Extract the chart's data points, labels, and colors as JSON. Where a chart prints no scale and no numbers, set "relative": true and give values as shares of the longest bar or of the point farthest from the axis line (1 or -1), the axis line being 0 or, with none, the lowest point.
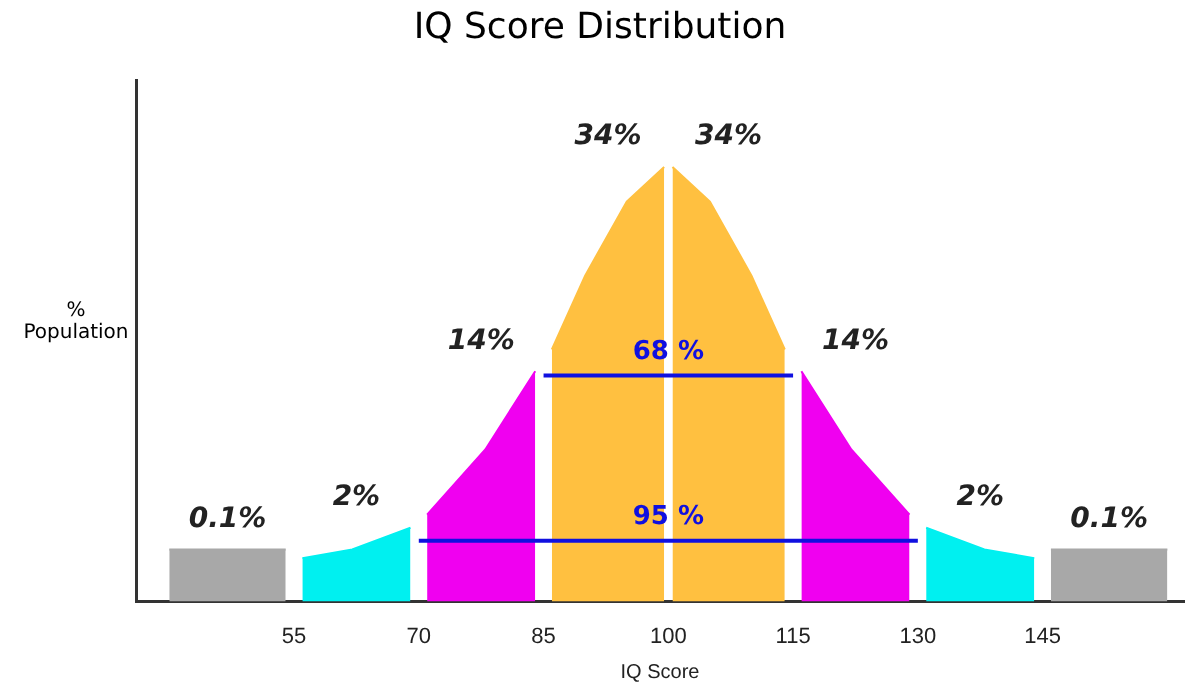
{
  "chart_data": {
    "type": "area",
    "title": "IQ Score Distribution",
    "xlabel": "IQ Score",
    "ylabel": "% Population",
    "relative": true,
    "xlim": [
      36,
      162
    ],
    "xticks": [
      55,
      70,
      85,
      100,
      115,
      130,
      145
    ],
    "series": [
      {
        "name": "0.1%",
        "color": "#a8a8a8",
        "x": [
          40,
          54
        ],
        "values": [
          0.12,
          0.12
        ]
      },
      {
        "name": "2%",
        "color": "#00f0f0",
        "x": [
          56,
          62,
          69
        ],
        "values": [
          0.1,
          0.12,
          0.17
        ]
      },
      {
        "name": "14%",
        "color": "#f000f0",
        "x": [
          71,
          78,
          84
        ],
        "values": [
          0.2,
          0.35,
          0.53
        ]
      },
      {
        "name": "34%",
        "color": "#ffc040",
        "x": [
          86,
          90,
          95,
          99.5
        ],
        "values": [
          0.58,
          0.75,
          0.92,
          1
        ]
      },
      {
        "name": "34%",
        "color": "#ffc040",
        "x": [
          100.5,
          105,
          110,
          114
        ],
        "values": [
          1,
          0.92,
          0.75,
          0.58
        ]
      },
      {
        "name": "14%",
        "color": "#f000f0",
        "x": [
          116,
          122,
          129
        ],
        "values": [
          0.53,
          0.35,
          0.2
        ]
      },
      {
        "name": "2%",
        "color": "#00f0f0",
        "x": [
          131,
          138,
          144
        ],
        "values": [
          0.17,
          0.12,
          0.1
        ]
      },
      {
        "name": "0.1%",
        "color": "#a8a8a8",
        "x": [
          146,
          160
        ],
        "values": [
          0.12,
          0.12
        ]
      },
      {
        "type": "line",
        "name": "68 %",
        "color": "#1010e0",
        "x": [
          85,
          115
        ],
        "values": [
          0.52,
          0.52
        ]
      },
      {
        "type": "line",
        "name": "95 %",
        "color": "#1010e0",
        "x": [
          70,
          130
        ],
        "values": [
          0.14,
          0.14
        ]
      }
    ]
  }
}
